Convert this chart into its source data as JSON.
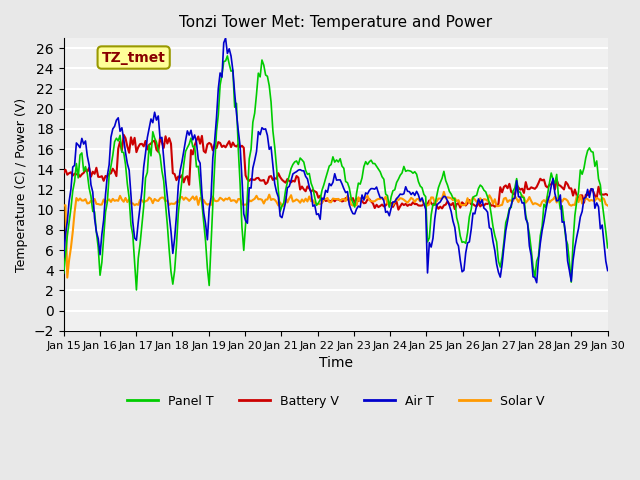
{
  "title": "Tonzi Tower Met: Temperature and Power",
  "xlabel": "Time",
  "ylabel": "Temperature (C) / Power (V)",
  "xlim": [
    0,
    15
  ],
  "ylim": [
    -2,
    27
  ],
  "yticks": [
    -2,
    0,
    2,
    4,
    6,
    8,
    10,
    12,
    14,
    16,
    18,
    20,
    22,
    24,
    26
  ],
  "xtick_labels": [
    "Jan 15",
    "Jan 16",
    "Jan 17",
    "Jan 18",
    "Jan 19",
    "Jan 20",
    "Jan 21",
    "Jan 22",
    "Jan 23",
    "Jan 24",
    "Jan 25",
    "Jan 26",
    "Jan 27",
    "Jan 28",
    "Jan 29",
    "Jan 30"
  ],
  "colors": {
    "panel_t": "#00CC00",
    "battery_v": "#CC0000",
    "air_t": "#0000CC",
    "solar_v": "#FF9900"
  },
  "annotation_text": "TZ_tmet",
  "annotation_bg": "#FFFF99",
  "annotation_border": "#999900",
  "bg_color": "#E8E8E8",
  "plot_bg": "#F0F0F0",
  "grid_color": "#FFFFFF",
  "legend_labels": [
    "Panel T",
    "Battery V",
    "Air T",
    "Solar V"
  ]
}
